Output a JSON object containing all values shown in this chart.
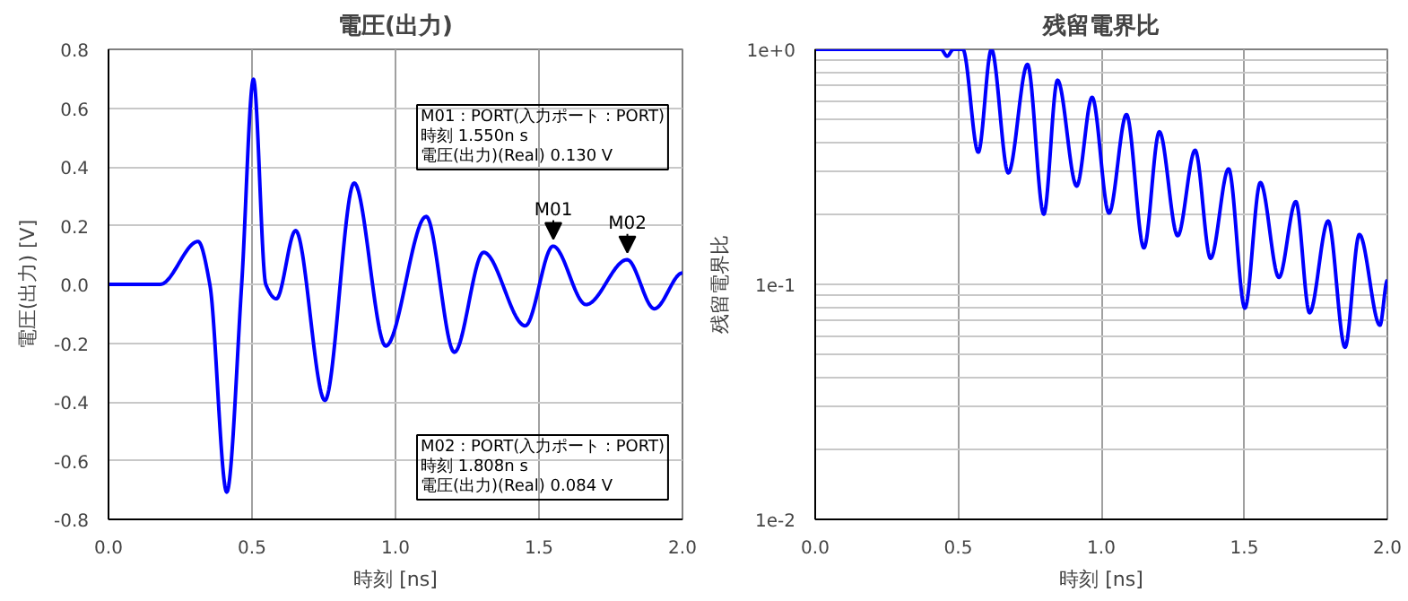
{
  "chart_data": [
    {
      "type": "line",
      "title": "電圧(出力)",
      "xlabel": "時刻 [ns]",
      "ylabel": "電圧(出力) [V]",
      "xlim": [
        0,
        2
      ],
      "ylim": [
        -0.8,
        0.8
      ],
      "xticks": [
        {
          "value": 0,
          "label": "0.0"
        },
        {
          "value": 0.5,
          "label": "0.5"
        },
        {
          "value": 1,
          "label": "1.0"
        },
        {
          "value": 1.5,
          "label": "1.5"
        },
        {
          "value": 2,
          "label": "2.0"
        }
      ],
      "yticks": [
        -0.8,
        -0.6,
        -0.4,
        -0.2,
        {
          "value": 0,
          "label": "0.0"
        },
        0.2,
        0.4,
        0.6,
        0.8
      ],
      "grid": true,
      "line_style": "solid",
      "series": [
        {
          "color": "#0000ff",
          "x": [
            0,
            0.18,
            0.312,
            0.353,
            0.412,
            0.464,
            0.505,
            0.548,
            0.585,
            0.652,
            0.754,
            0.856,
            0.966,
            1.107,
            1.205,
            1.307,
            1.452,
            1.549,
            1.664,
            1.807,
            1.902,
            2.0
          ],
          "values": [
            0,
            0,
            0.146,
            0,
            -0.707,
            0,
            0.698,
            0,
            -0.049,
            0.183,
            -0.395,
            0.345,
            -0.21,
            0.231,
            -0.231,
            0.109,
            -0.141,
            0.13,
            -0.069,
            0.084,
            -0.083,
            0.039
          ]
        }
      ],
      "annotations": [
        {
          "text": "M01",
          "x": 1.55,
          "y": 0.13
        },
        {
          "text": "M02",
          "x": 1.808,
          "y": 0.084
        },
        "M01 : PORT(入力ポート : PORT)\n時刻                           1.550n s\n電圧(出力)(Real)  0.130 V",
        "M02 : PORT(入力ポート : PORT)\n時刻                           1.808n s\n電圧(出力)(Real)  0.084 V"
      ]
    },
    {
      "type": "line",
      "title": "残留電界比",
      "xlabel": "時刻 [ns]",
      "ylabel": "残留電界比",
      "log": "y",
      "xlim": [
        0,
        2
      ],
      "ylim": [
        0.01,
        1
      ],
      "xticks": [
        {
          "value": 0,
          "label": "0.0"
        },
        {
          "value": 0.5,
          "label": "0.5"
        },
        {
          "value": 1,
          "label": "1.0"
        },
        {
          "value": 1.5,
          "label": "1.5"
        },
        {
          "value": 2,
          "label": "2.0"
        }
      ],
      "yticks": [
        {
          "value": 0.01,
          "label": "1e-2"
        },
        {
          "value": 0.02,
          "label": null
        },
        {
          "value": 0.03,
          "label": null
        },
        {
          "value": 0.04,
          "label": null
        },
        {
          "value": 0.05,
          "label": null
        },
        {
          "value": 0.06,
          "label": null
        },
        {
          "value": 0.07,
          "label": null
        },
        {
          "value": 0.08,
          "label": null
        },
        {
          "value": 0.09,
          "label": null
        },
        {
          "value": 0.1,
          "label": "1e-1"
        },
        {
          "value": 0.2,
          "label": null
        },
        {
          "value": 0.3,
          "label": null
        },
        {
          "value": 0.4,
          "label": null
        },
        {
          "value": 0.5,
          "label": null
        },
        {
          "value": 0.6,
          "label": null
        },
        {
          "value": 0.7,
          "label": null
        },
        {
          "value": 0.8,
          "label": null
        },
        {
          "value": 0.9,
          "label": null
        },
        {
          "value": 1,
          "label": "1e+0"
        }
      ],
      "grid": true,
      "line_style": "solid",
      "series": [
        {
          "color": "#0000ff",
          "x": [
            0,
            0.44,
            0.461,
            0.483,
            0.516,
            0.57,
            0.616,
            0.675,
            0.742,
            0.799,
            0.847,
            0.914,
            0.968,
            1.027,
            1.088,
            1.149,
            1.203,
            1.267,
            1.328,
            1.382,
            1.445,
            1.502,
            1.556,
            1.621,
            1.68,
            1.728,
            1.793,
            1.852,
            1.902,
            1.974,
            2.0
          ],
          "values": [
            1,
            1,
            0.935,
            1,
            1,
            0.365,
            1,
            0.298,
            0.863,
            0.199,
            0.739,
            0.262,
            0.625,
            0.201,
            0.528,
            0.143,
            0.446,
            0.161,
            0.372,
            0.129,
            0.31,
            0.0793,
            0.271,
            0.107,
            0.225,
            0.0757,
            0.186,
            0.054,
            0.163,
            0.067,
            0.104
          ]
        }
      ]
    }
  ]
}
